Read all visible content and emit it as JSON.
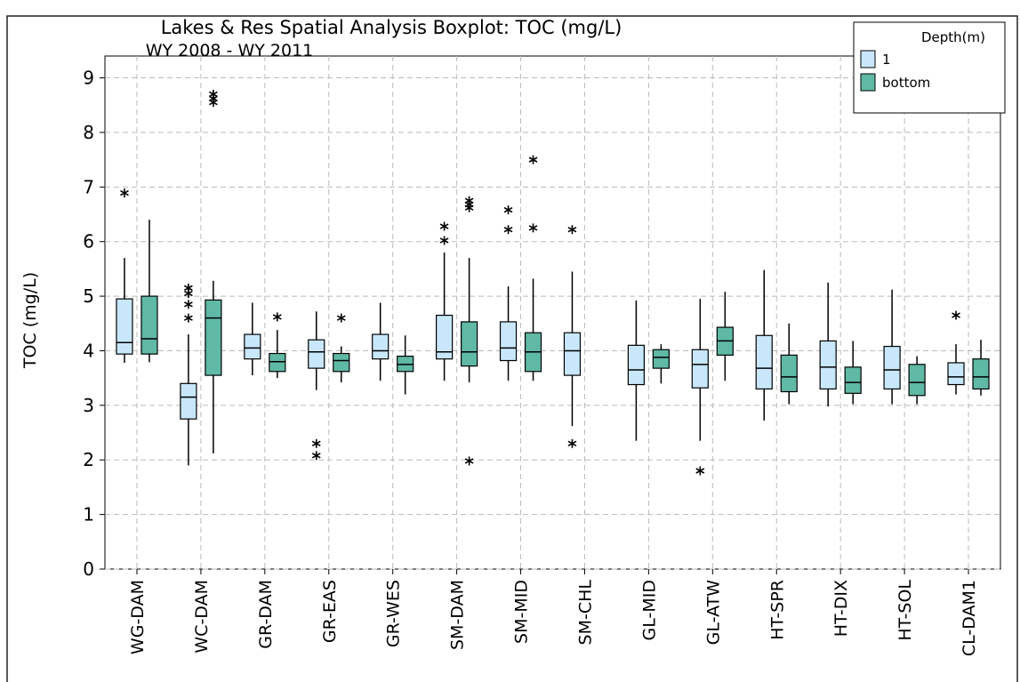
{
  "chart_data": {
    "type": "boxplot",
    "title": "Lakes & Res Spatial Analysis Boxplot: TOC (mg/L)",
    "subtitle": "WY 2008 - WY 2011",
    "y_label": "TOC (mg/L)",
    "legend_title": "Depth(m)",
    "legend_position": "upper right",
    "grid": true,
    "ylim": [
      0,
      9.4
    ],
    "yticks": [
      0,
      1,
      2,
      3,
      4,
      5,
      6,
      7,
      8,
      9
    ],
    "categories": [
      "WG-DAM",
      "WC-DAM",
      "GR-DAM",
      "GR-EAS",
      "GR-WES",
      "SM-DAM",
      "SM-MID",
      "SM-CHL",
      "GL-MID",
      "GL-ATW",
      "HT-SPR",
      "HT-DIX",
      "HT-SOL",
      "CL-DAM1"
    ],
    "series": [
      {
        "name": "1",
        "color": "#c8e7fb",
        "boxes": [
          {
            "low": 3.78,
            "q1": 3.94,
            "median": 4.15,
            "q3": 4.95,
            "high": 5.7,
            "outliers": [
              6.89
            ]
          },
          {
            "low": 1.9,
            "q1": 2.75,
            "median": 3.15,
            "q3": 3.4,
            "high": 4.3,
            "outliers": [
              4.6,
              4.85,
              5.05,
              5.15
            ]
          },
          {
            "low": 3.55,
            "q1": 3.85,
            "median": 4.05,
            "q3": 4.3,
            "high": 4.88,
            "outliers": []
          },
          {
            "low": 3.28,
            "q1": 3.68,
            "median": 3.98,
            "q3": 4.2,
            "high": 4.72,
            "outliers": [
              2.3,
              2.08
            ]
          },
          {
            "low": 3.45,
            "q1": 3.85,
            "median": 4.0,
            "q3": 4.3,
            "high": 4.88,
            "outliers": []
          },
          {
            "low": 3.45,
            "q1": 3.85,
            "median": 3.98,
            "q3": 4.65,
            "high": 5.8,
            "outliers": [
              6.28,
              6.02
            ]
          },
          {
            "low": 3.45,
            "q1": 3.82,
            "median": 4.05,
            "q3": 4.53,
            "high": 5.18,
            "outliers": [
              6.58,
              6.22
            ]
          },
          {
            "low": 2.62,
            "q1": 3.55,
            "median": 4.0,
            "q3": 4.33,
            "high": 5.45,
            "outliers": [
              6.22,
              2.3
            ]
          },
          {
            "low": 2.35,
            "q1": 3.38,
            "median": 3.65,
            "q3": 4.1,
            "high": 4.92,
            "outliers": []
          },
          {
            "low": 2.35,
            "q1": 3.32,
            "median": 3.75,
            "q3": 4.02,
            "high": 4.95,
            "outliers": [
              1.8
            ]
          },
          {
            "low": 2.72,
            "q1": 3.3,
            "median": 3.68,
            "q3": 4.28,
            "high": 5.48,
            "outliers": []
          },
          {
            "low": 2.98,
            "q1": 3.3,
            "median": 3.7,
            "q3": 4.18,
            "high": 5.25,
            "outliers": []
          },
          {
            "low": 3.02,
            "q1": 3.3,
            "median": 3.65,
            "q3": 4.08,
            "high": 5.12,
            "outliers": []
          },
          {
            "low": 3.2,
            "q1": 3.38,
            "median": 3.52,
            "q3": 3.78,
            "high": 4.12,
            "outliers": [
              4.65
            ]
          }
        ]
      },
      {
        "name": "bottom",
        "color": "#5fb9a5",
        "boxes": [
          {
            "low": 3.79,
            "q1": 3.94,
            "median": 4.22,
            "q3": 5.0,
            "high": 6.4,
            "outliers": []
          },
          {
            "low": 2.12,
            "q1": 3.55,
            "median": 4.6,
            "q3": 4.93,
            "high": 5.28,
            "outliers": [
              8.7,
              8.62,
              8.55
            ]
          },
          {
            "low": 3.5,
            "q1": 3.62,
            "median": 3.8,
            "q3": 3.95,
            "high": 4.38,
            "outliers": [
              4.62
            ]
          },
          {
            "low": 3.42,
            "q1": 3.62,
            "median": 3.82,
            "q3": 3.95,
            "high": 4.08,
            "outliers": [
              4.6
            ]
          },
          {
            "low": 3.2,
            "q1": 3.62,
            "median": 3.75,
            "q3": 3.9,
            "high": 4.28,
            "outliers": []
          },
          {
            "low": 3.42,
            "q1": 3.72,
            "median": 3.98,
            "q3": 4.53,
            "high": 5.7,
            "outliers": [
              6.75,
              6.68,
              6.62,
              1.98
            ]
          },
          {
            "low": 3.45,
            "q1": 3.62,
            "median": 3.98,
            "q3": 4.33,
            "high": 5.32,
            "outliers": [
              7.5,
              6.25
            ]
          },
          null,
          {
            "low": 3.4,
            "q1": 3.68,
            "median": 3.88,
            "q3": 4.02,
            "high": 4.12,
            "outliers": []
          },
          {
            "low": 3.45,
            "q1": 3.92,
            "median": 4.18,
            "q3": 4.43,
            "high": 5.08,
            "outliers": []
          },
          {
            "low": 3.02,
            "q1": 3.25,
            "median": 3.52,
            "q3": 3.92,
            "high": 4.5,
            "outliers": []
          },
          {
            "low": 3.02,
            "q1": 3.22,
            "median": 3.42,
            "q3": 3.7,
            "high": 4.18,
            "outliers": []
          },
          {
            "low": 3.02,
            "q1": 3.18,
            "median": 3.42,
            "q3": 3.75,
            "high": 3.9,
            "outliers": []
          },
          {
            "low": 3.18,
            "q1": 3.3,
            "median": 3.52,
            "q3": 3.85,
            "high": 4.2,
            "outliers": []
          }
        ]
      }
    ]
  }
}
